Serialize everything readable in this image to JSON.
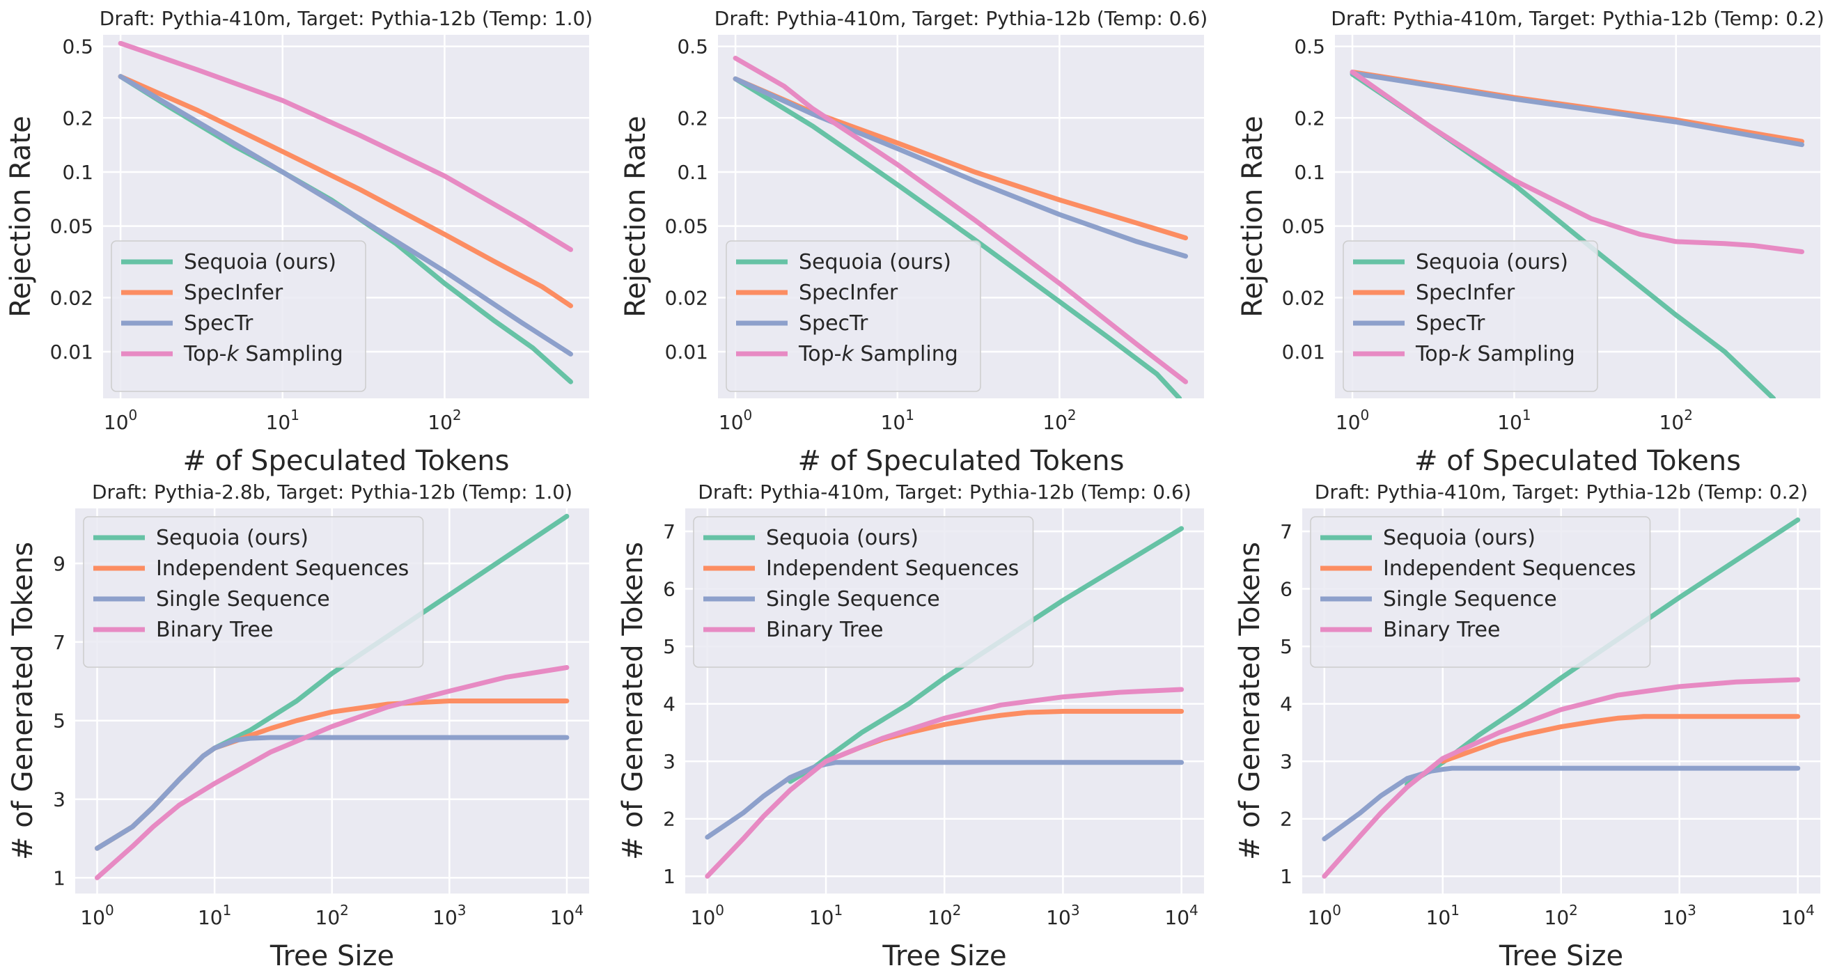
{
  "chart_data": [
    {
      "type": "line",
      "title": "Draft: Pythia-410m, Target: Pythia-12b (Temp: 1.0)",
      "xlabel": "# of Speculated Tokens",
      "ylabel": "Rejection Rate",
      "xscale": "log",
      "yscale": "log",
      "xlim": [
        0.78,
        780
      ],
      "ylim": [
        0.0055,
        0.58
      ],
      "xticks": [
        1,
        10,
        100
      ],
      "xtick_labels": [
        "10^0",
        "10^1",
        "10^2"
      ],
      "yticks": [
        0.01,
        0.02,
        0.05,
        0.1,
        0.2,
        0.5
      ],
      "ytick_labels": [
        "0.01",
        "0.02",
        "0.05",
        "0.1",
        "0.2",
        "0.5"
      ],
      "grid": true,
      "legend_position": "lower-left",
      "series": [
        {
          "name": "Sequoia (ours)",
          "color": "#66c2a5",
          "x": [
            1,
            2,
            5,
            10,
            20,
            50,
            100,
            200,
            350,
            600
          ],
          "y": [
            0.34,
            0.23,
            0.14,
            0.1,
            0.07,
            0.04,
            0.024,
            0.015,
            0.0105,
            0.0068
          ]
        },
        {
          "name": "SpecInfer",
          "color": "#fc8d62",
          "x": [
            1,
            3,
            10,
            30,
            100,
            200,
            400,
            600
          ],
          "y": [
            0.34,
            0.22,
            0.13,
            0.08,
            0.045,
            0.032,
            0.023,
            0.018
          ]
        },
        {
          "name": "SpecTr",
          "color": "#8da0cb",
          "x": [
            1,
            3,
            10,
            30,
            100,
            300,
            600
          ],
          "y": [
            0.34,
            0.19,
            0.1,
            0.055,
            0.028,
            0.0145,
            0.0097
          ]
        },
        {
          "name": "Top-k Sampling",
          "color": "#e78ac3",
          "x": [
            1,
            3,
            10,
            30,
            100,
            300,
            600
          ],
          "y": [
            0.52,
            0.37,
            0.25,
            0.16,
            0.095,
            0.054,
            0.037
          ]
        }
      ]
    },
    {
      "type": "line",
      "title": "Draft: Pythia-410m, Target: Pythia-12b (Temp: 0.6)",
      "xlabel": "# of Speculated Tokens",
      "ylabel": "Rejection Rate",
      "xscale": "log",
      "yscale": "log",
      "xlim": [
        0.78,
        780
      ],
      "ylim": [
        0.0055,
        0.58
      ],
      "xticks": [
        1,
        10,
        100
      ],
      "xtick_labels": [
        "10^0",
        "10^1",
        "10^2"
      ],
      "yticks": [
        0.01,
        0.02,
        0.05,
        0.1,
        0.2,
        0.5
      ],
      "ytick_labels": [
        "0.01",
        "0.02",
        "0.05",
        "0.1",
        "0.2",
        "0.5"
      ],
      "grid": true,
      "legend_position": "lower-left",
      "series": [
        {
          "name": "Sequoia (ours)",
          "color": "#66c2a5",
          "x": [
            1,
            3,
            10,
            30,
            100,
            200,
            400,
            550
          ],
          "y": [
            0.33,
            0.18,
            0.085,
            0.042,
            0.019,
            0.012,
            0.0075,
            0.0055
          ]
        },
        {
          "name": "SpecInfer",
          "color": "#fc8d62",
          "x": [
            1,
            3,
            10,
            30,
            100,
            300,
            600
          ],
          "y": [
            0.33,
            0.215,
            0.145,
            0.1,
            0.07,
            0.052,
            0.043
          ]
        },
        {
          "name": "SpecTr",
          "color": "#8da0cb",
          "x": [
            1,
            3,
            10,
            30,
            100,
            300,
            600
          ],
          "y": [
            0.33,
            0.21,
            0.135,
            0.089,
            0.058,
            0.041,
            0.034
          ]
        },
        {
          "name": "Top-k Sampling",
          "color": "#e78ac3",
          "x": [
            1,
            2,
            3,
            10,
            30,
            100,
            300,
            600
          ],
          "y": [
            0.43,
            0.3,
            0.225,
            0.11,
            0.054,
            0.024,
            0.011,
            0.0068
          ]
        }
      ]
    },
    {
      "type": "line",
      "title": "Draft: Pythia-410m, Target: Pythia-12b (Temp: 0.2)",
      "xlabel": "# of Speculated Tokens",
      "ylabel": "Rejection Rate",
      "xscale": "log",
      "yscale": "log",
      "xlim": [
        0.78,
        780
      ],
      "ylim": [
        0.0055,
        0.58
      ],
      "xticks": [
        1,
        10,
        100
      ],
      "xtick_labels": [
        "10^0",
        "10^1",
        "10^2"
      ],
      "yticks": [
        0.01,
        0.02,
        0.05,
        0.1,
        0.2,
        0.5
      ],
      "ytick_labels": [
        "0.01",
        "0.02",
        "0.05",
        "0.1",
        "0.2",
        "0.5"
      ],
      "grid": true,
      "legend_position": "lower-left",
      "series": [
        {
          "name": "Sequoia (ours)",
          "color": "#66c2a5",
          "x": [
            1,
            3,
            10,
            30,
            100,
            200,
            400
          ],
          "y": [
            0.35,
            0.18,
            0.085,
            0.038,
            0.016,
            0.01,
            0.0055
          ]
        },
        {
          "name": "SpecInfer",
          "color": "#fc8d62",
          "x": [
            1,
            10,
            100,
            600
          ],
          "y": [
            0.36,
            0.26,
            0.195,
            0.148
          ]
        },
        {
          "name": "SpecTr",
          "color": "#8da0cb",
          "x": [
            1,
            10,
            100,
            600
          ],
          "y": [
            0.355,
            0.255,
            0.19,
            0.142
          ]
        },
        {
          "name": "Top-k Sampling",
          "color": "#e78ac3",
          "x": [
            1,
            3,
            10,
            30,
            60,
            100,
            200,
            300,
            600
          ],
          "y": [
            0.36,
            0.18,
            0.09,
            0.055,
            0.045,
            0.041,
            0.04,
            0.039,
            0.036
          ]
        }
      ]
    },
    {
      "type": "line",
      "title": "Draft: Pythia-2.8b, Target: Pythia-12b (Temp: 1.0)",
      "xlabel": "Tree Size",
      "ylabel": "# of Generated Tokens",
      "xscale": "log",
      "yscale": "linear",
      "xlim": [
        0.65,
        15500
      ],
      "ylim": [
        0.6,
        10.4
      ],
      "xticks": [
        1,
        10,
        100,
        1000,
        10000
      ],
      "xtick_labels": [
        "10^0",
        "10^1",
        "10^2",
        "10^3",
        "10^4"
      ],
      "yticks": [
        1,
        3,
        5,
        7,
        9
      ],
      "ytick_labels": [
        "1",
        "3",
        "5",
        "7",
        "9"
      ],
      "grid": true,
      "legend_position": "upper-left",
      "series": [
        {
          "name": "Sequoia (ours)",
          "color": "#66c2a5",
          "x": [
            1,
            2,
            3,
            5,
            8,
            10,
            20,
            50,
            100,
            1000,
            10000
          ],
          "y": [
            1.75,
            2.3,
            2.8,
            3.5,
            4.1,
            4.3,
            4.75,
            5.5,
            6.2,
            8.2,
            10.2
          ]
        },
        {
          "name": "Independent Sequences",
          "color": "#fc8d62",
          "x": [
            1,
            2,
            3,
            5,
            8,
            10,
            15,
            20,
            30,
            50,
            100,
            300,
            1000,
            10000
          ],
          "y": [
            1.75,
            2.3,
            2.8,
            3.5,
            4.1,
            4.3,
            4.48,
            4.62,
            4.8,
            5.0,
            5.22,
            5.42,
            5.5,
            5.5
          ]
        },
        {
          "name": "Single Sequence",
          "color": "#8da0cb",
          "x": [
            1,
            2,
            3,
            5,
            8,
            10,
            15,
            20,
            30,
            100,
            10000
          ],
          "y": [
            1.75,
            2.3,
            2.8,
            3.5,
            4.1,
            4.3,
            4.5,
            4.55,
            4.57,
            4.57,
            4.57
          ]
        },
        {
          "name": "Binary Tree",
          "color": "#e78ac3",
          "x": [
            1,
            2,
            3,
            5,
            10,
            30,
            100,
            300,
            1000,
            3000,
            10000
          ],
          "y": [
            1.0,
            1.8,
            2.3,
            2.85,
            3.4,
            4.2,
            4.85,
            5.35,
            5.75,
            6.1,
            6.35
          ]
        }
      ]
    },
    {
      "type": "line",
      "title": "Draft: Pythia-410m, Target: Pythia-12b (Temp: 0.6)",
      "xlabel": "Tree Size",
      "ylabel": "# of Generated Tokens",
      "xscale": "log",
      "yscale": "linear",
      "xlim": [
        0.65,
        15500
      ],
      "ylim": [
        0.7,
        7.4
      ],
      "xticks": [
        1,
        10,
        100,
        1000,
        10000
      ],
      "xtick_labels": [
        "10^0",
        "10^1",
        "10^2",
        "10^3",
        "10^4"
      ],
      "yticks": [
        1,
        2,
        3,
        4,
        5,
        6,
        7
      ],
      "ytick_labels": [
        "1",
        "2",
        "3",
        "4",
        "5",
        "6",
        "7"
      ],
      "grid": true,
      "legend_position": "upper-left",
      "series": [
        {
          "name": "Sequoia (ours)",
          "color": "#66c2a5",
          "x": [
            5,
            8,
            10,
            20,
            50,
            100,
            1000,
            10000
          ],
          "y": [
            2.65,
            2.9,
            3.05,
            3.5,
            4.0,
            4.45,
            5.8,
            7.05
          ]
        },
        {
          "name": "Independent Sequences",
          "color": "#fc8d62",
          "x": [
            10,
            20,
            30,
            50,
            100,
            200,
            300,
            500,
            1000,
            10000
          ],
          "y": [
            3.0,
            3.25,
            3.38,
            3.5,
            3.64,
            3.75,
            3.8,
            3.85,
            3.87,
            3.87
          ]
        },
        {
          "name": "Single Sequence",
          "color": "#8da0cb",
          "x": [
            1,
            2,
            3,
            5,
            8,
            10,
            12,
            20,
            100,
            10000
          ],
          "y": [
            1.68,
            2.1,
            2.4,
            2.72,
            2.9,
            2.95,
            2.98,
            2.98,
            2.98,
            2.98
          ]
        },
        {
          "name": "Binary Tree",
          "color": "#e78ac3",
          "x": [
            1,
            2,
            3,
            5,
            10,
            30,
            100,
            300,
            1000,
            3000,
            10000
          ],
          "y": [
            1.0,
            1.65,
            2.05,
            2.5,
            3.0,
            3.4,
            3.75,
            3.98,
            4.12,
            4.2,
            4.25
          ]
        }
      ]
    },
    {
      "type": "line",
      "title": "Draft: Pythia-410m, Target: Pythia-12b (Temp: 0.2)",
      "xlabel": "Tree Size",
      "ylabel": "# of Generated Tokens",
      "xscale": "log",
      "yscale": "linear",
      "xlim": [
        0.65,
        15500
      ],
      "ylim": [
        0.7,
        7.4
      ],
      "xticks": [
        1,
        10,
        100,
        1000,
        10000
      ],
      "xtick_labels": [
        "10^0",
        "10^1",
        "10^2",
        "10^3",
        "10^4"
      ],
      "yticks": [
        1,
        2,
        3,
        4,
        5,
        6,
        7
      ],
      "ytick_labels": [
        "1",
        "2",
        "3",
        "4",
        "5",
        "6",
        "7"
      ],
      "grid": true,
      "legend_position": "upper-left",
      "series": [
        {
          "name": "Sequoia (ours)",
          "color": "#66c2a5",
          "x": [
            5,
            8,
            10,
            20,
            50,
            100,
            1000,
            10000
          ],
          "y": [
            2.6,
            2.85,
            2.98,
            3.45,
            4.0,
            4.45,
            5.85,
            7.2
          ]
        },
        {
          "name": "Independent Sequences",
          "color": "#fc8d62",
          "x": [
            10,
            20,
            30,
            50,
            100,
            200,
            300,
            500,
            1000,
            10000
          ],
          "y": [
            3.0,
            3.22,
            3.35,
            3.47,
            3.6,
            3.7,
            3.75,
            3.78,
            3.78,
            3.78
          ]
        },
        {
          "name": "Single Sequence",
          "color": "#8da0cb",
          "x": [
            1,
            2,
            3,
            5,
            8,
            10,
            12,
            20,
            100,
            10000
          ],
          "y": [
            1.65,
            2.1,
            2.4,
            2.7,
            2.83,
            2.86,
            2.88,
            2.88,
            2.88,
            2.88
          ]
        },
        {
          "name": "Binary Tree",
          "color": "#e78ac3",
          "x": [
            1,
            2,
            3,
            5,
            10,
            30,
            100,
            300,
            1000,
            3000,
            10000
          ],
          "y": [
            1.0,
            1.7,
            2.1,
            2.55,
            3.05,
            3.5,
            3.9,
            4.15,
            4.3,
            4.38,
            4.42
          ]
        }
      ]
    }
  ]
}
